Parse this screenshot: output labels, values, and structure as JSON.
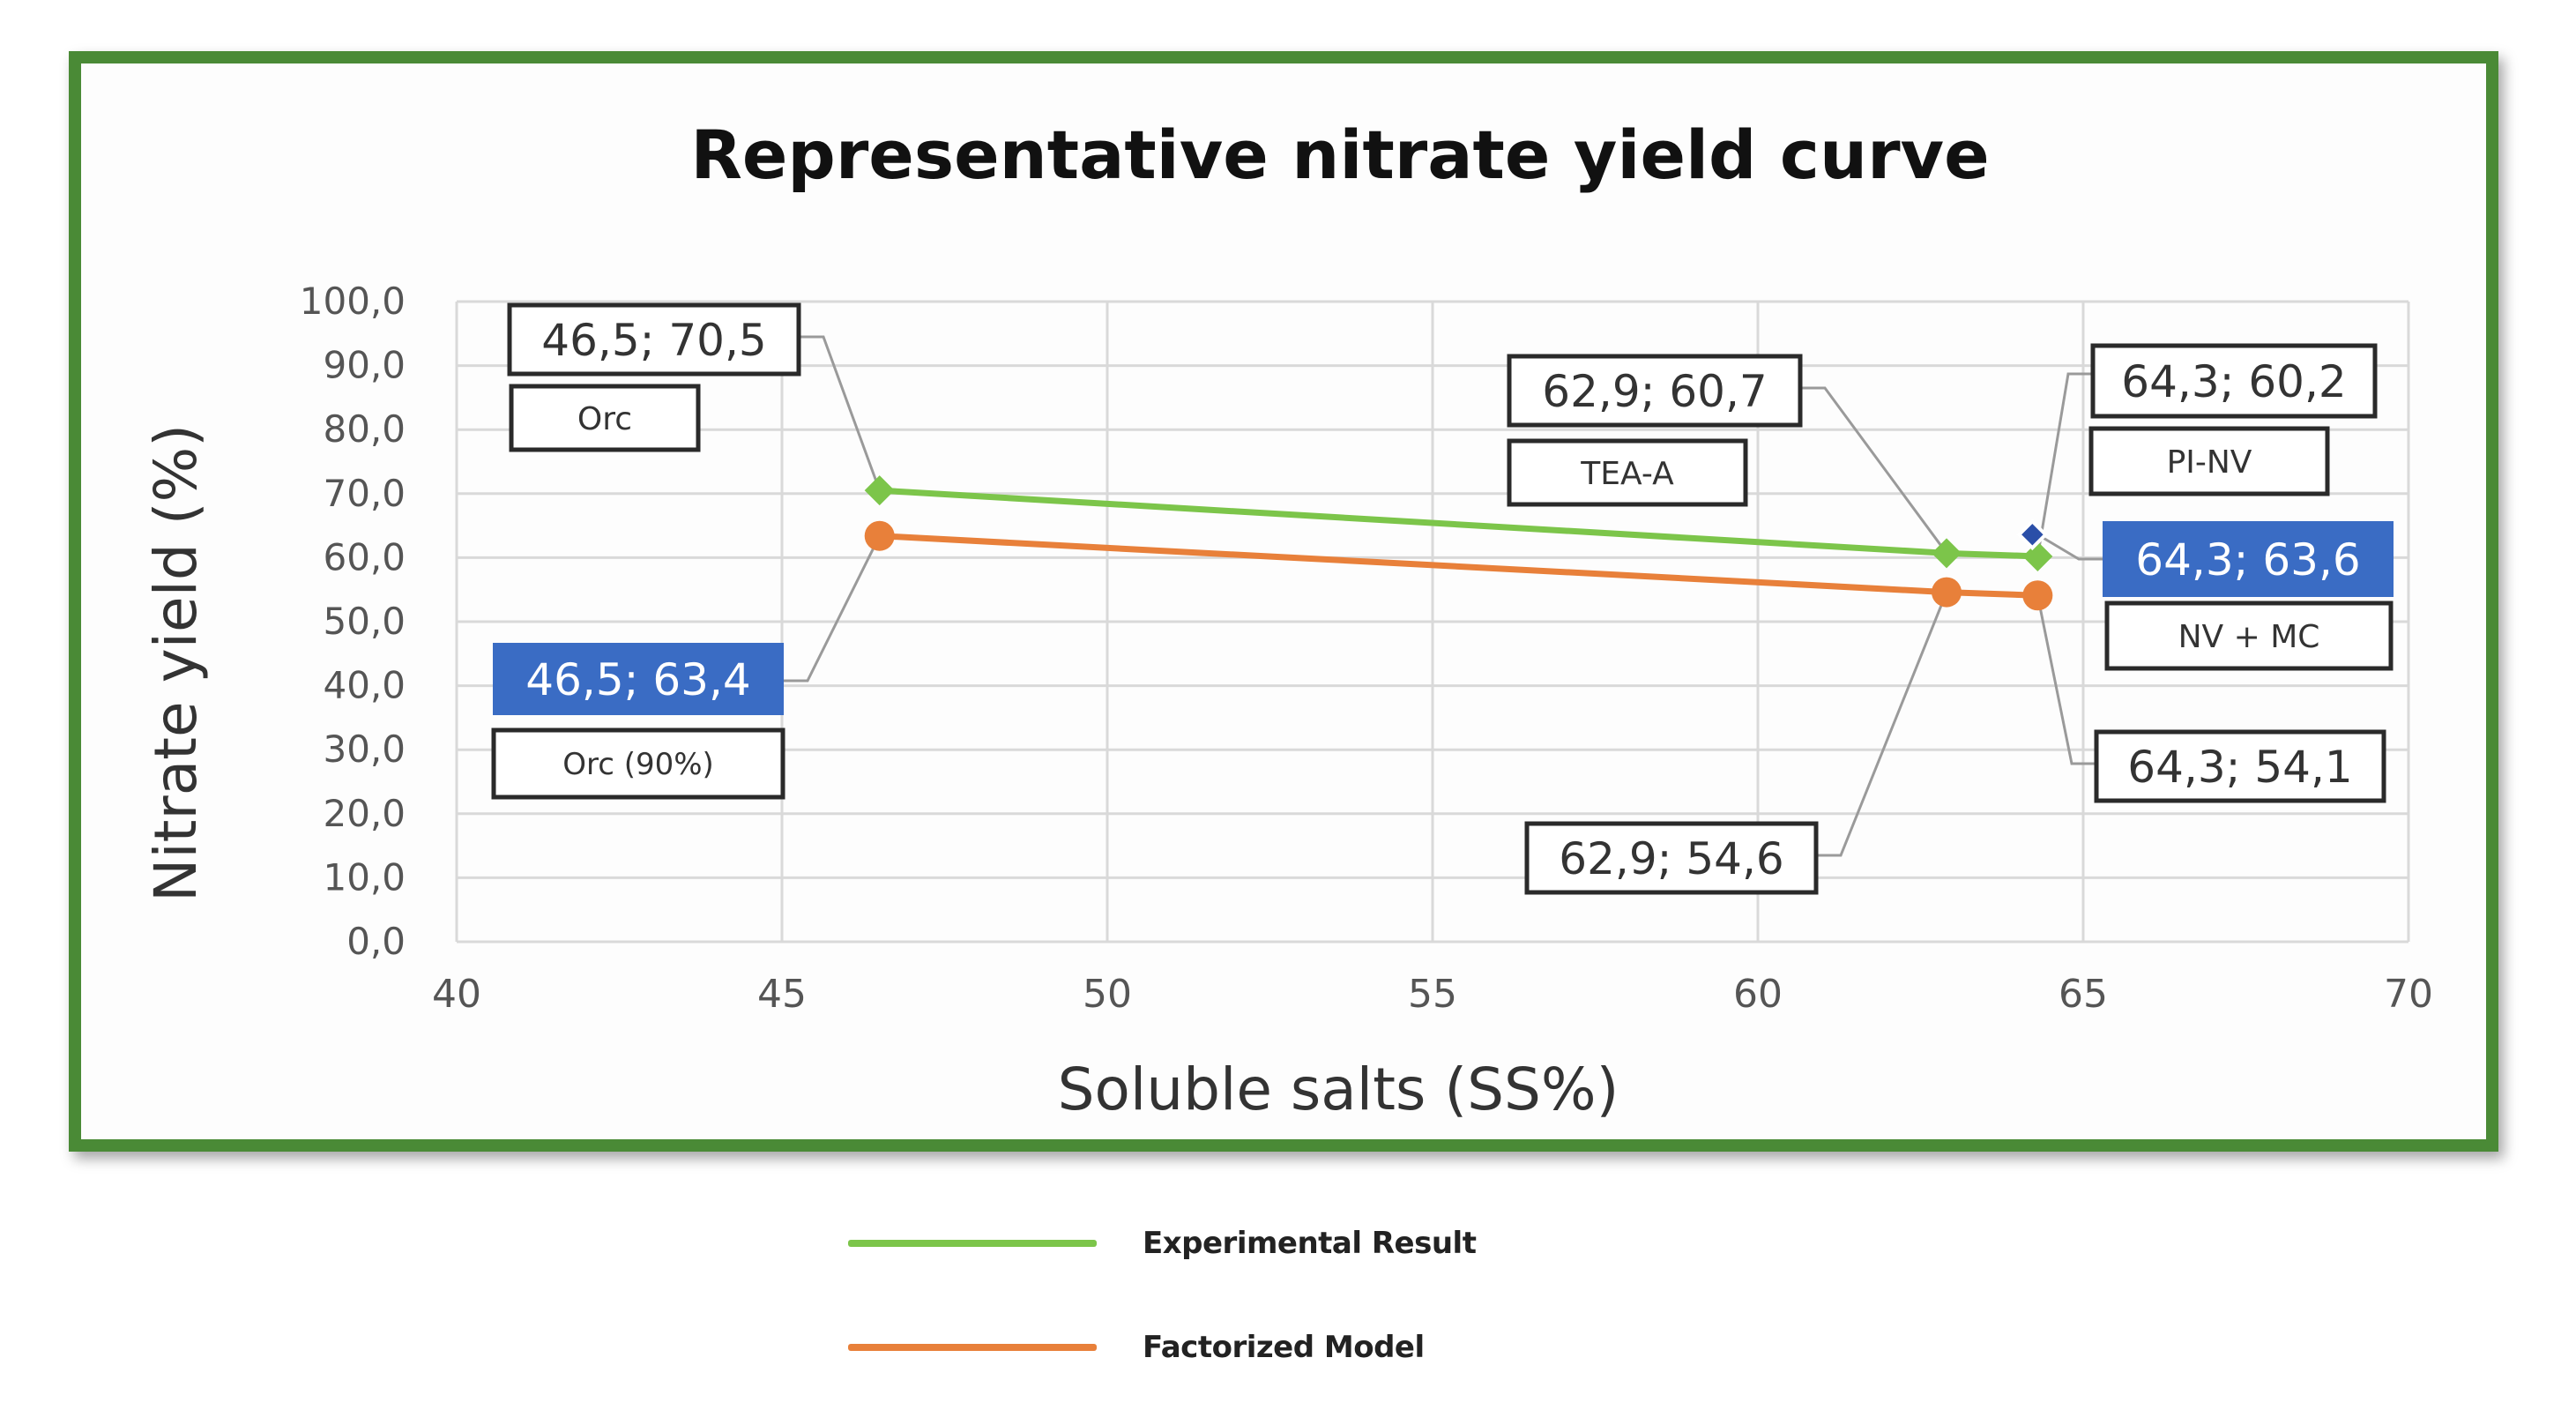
{
  "chart_data": {
    "type": "line",
    "title": "Representative nitrate yield curve",
    "xlabel": "Soluble salts (SS%)",
    "ylabel": "Nitrate yield (%)",
    "xlim": [
      40,
      70
    ],
    "ylim": [
      0,
      100
    ],
    "x_ticks": [
      "40",
      "45",
      "50",
      "55",
      "60",
      "65",
      "70"
    ],
    "y_ticks": [
      "0,0",
      "10,0",
      "20,0",
      "30,0",
      "40,0",
      "50,0",
      "60,0",
      "70,0",
      "80,0",
      "90,0",
      "100,0"
    ],
    "grid": true,
    "legend_position": "bottom",
    "series": [
      {
        "name": "Experimental Result",
        "color": "#7cc54a",
        "marker": "diamond",
        "points": [
          {
            "x": 46.5,
            "y": 70.5
          },
          {
            "x": 62.9,
            "y": 60.7
          },
          {
            "x": 64.3,
            "y": 60.2
          }
        ]
      },
      {
        "name": "Factorized Model",
        "color": "#e8803a",
        "marker": "circle",
        "points": [
          {
            "x": 46.5,
            "y": 63.4
          },
          {
            "x": 62.9,
            "y": 54.6
          },
          {
            "x": 64.3,
            "y": 54.1
          }
        ]
      }
    ],
    "extra_points": [
      {
        "x": 64.3,
        "y": 63.6,
        "color": "#2b4fa8",
        "marker": "diamond"
      }
    ],
    "annotations": [
      {
        "text": "46,5; 70,5",
        "style": "value"
      },
      {
        "text": "Orc",
        "style": "label"
      },
      {
        "text": "46,5; 63,4",
        "style": "value-highlight"
      },
      {
        "text": "Orc (90%)",
        "style": "label"
      },
      {
        "text": "62,9; 60,7",
        "style": "value"
      },
      {
        "text": "TEA-A",
        "style": "label"
      },
      {
        "text": "62,9; 54,6",
        "style": "value"
      },
      {
        "text": "64,3; 60,2",
        "style": "value"
      },
      {
        "text": "PI-NV",
        "style": "label"
      },
      {
        "text": "64,3; 63,6",
        "style": "value-highlight"
      },
      {
        "text": "NV + MC",
        "style": "label"
      },
      {
        "text": "64,3; 54,1",
        "style": "value"
      }
    ]
  },
  "colors": {
    "frame_border": "#4a8a36",
    "grid": "#d9d9d9",
    "highlight_fill": "#3a6cc4"
  }
}
